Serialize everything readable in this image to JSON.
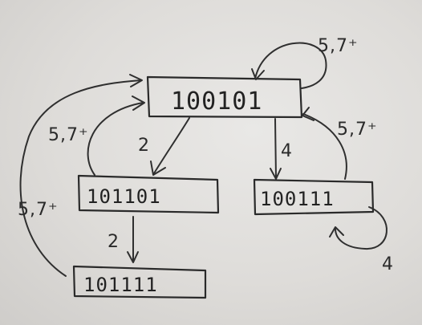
{
  "diagram": {
    "states": {
      "s100101": "100101",
      "s101101": "101101",
      "s100111": "100111",
      "s101111": "101111"
    },
    "edge_labels": {
      "self_top": "5,7⁺",
      "top_to_left": "2",
      "left_back_to_top": "5,7⁺",
      "top_to_right": "4",
      "right_back_to_top": "5,7⁺",
      "right_self": "4",
      "left_to_bottom": "2",
      "bottom_back_to_top": "5,7⁺"
    }
  }
}
